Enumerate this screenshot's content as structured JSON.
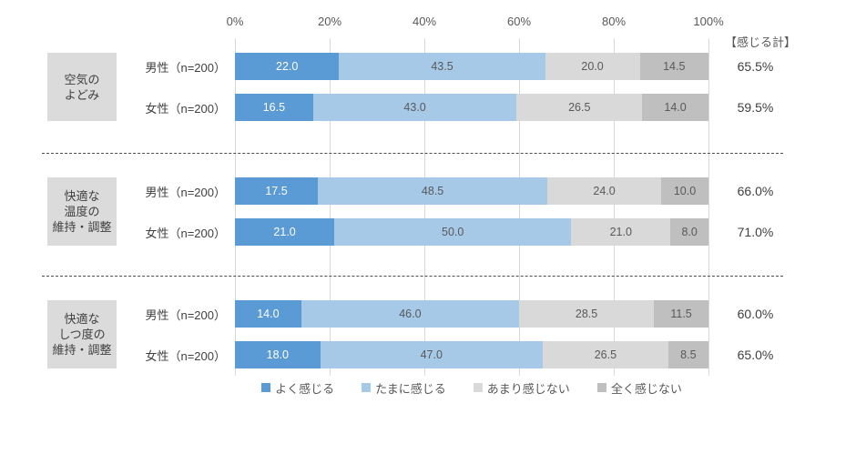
{
  "chart_data": {
    "type": "bar",
    "orientation": "horizontal-stacked",
    "xlabel": "",
    "ylabel": "",
    "xlim": [
      0,
      100
    ],
    "grid": true,
    "axis_ticks": [
      "0%",
      "20%",
      "40%",
      "60%",
      "80%",
      "100%"
    ],
    "total_header": "【感じる計】",
    "legend_position": "bottom",
    "series_names": [
      "よく感じる",
      "たまに感じる",
      "あまり感じない",
      "全く感じない"
    ],
    "series_colors": [
      "#5b9bd5",
      "#a6c9e8",
      "#d9d9d9",
      "#bfbfbf"
    ],
    "legend": [
      {
        "label": "よく感じる",
        "color": "#5b9bd5"
      },
      {
        "label": "たまに感じる",
        "color": "#a6c9e8"
      },
      {
        "label": "あまり感じない",
        "color": "#d9d9d9"
      },
      {
        "label": "全く感じない",
        "color": "#bfbfbf"
      }
    ],
    "groups": [
      {
        "category_lines": [
          "空気の",
          "よどみ"
        ],
        "rows": [
          {
            "label": "男性（n=200）",
            "values": [
              22.0,
              43.5,
              20.0,
              14.5
            ],
            "total": "65.5%"
          },
          {
            "label": "女性（n=200）",
            "values": [
              16.5,
              43.0,
              26.5,
              14.0
            ],
            "total": "59.5%"
          }
        ]
      },
      {
        "category_lines": [
          "快適な",
          "温度の",
          "維持・調整"
        ],
        "rows": [
          {
            "label": "男性（n=200）",
            "values": [
              17.5,
              48.5,
              24.0,
              10.0
            ],
            "total": "66.0%"
          },
          {
            "label": "女性（n=200）",
            "values": [
              21.0,
              50.0,
              21.0,
              8.0
            ],
            "total": "71.0%"
          }
        ]
      },
      {
        "category_lines": [
          "快適な",
          "しつ度の",
          "維持・調整"
        ],
        "rows": [
          {
            "label": "男性（n=200）",
            "values": [
              14.0,
              46.0,
              28.5,
              11.5
            ],
            "total": "60.0%"
          },
          {
            "label": "女性（n=200）",
            "values": [
              18.0,
              47.0,
              26.5,
              8.5
            ],
            "total": "65.0%"
          }
        ]
      }
    ]
  }
}
